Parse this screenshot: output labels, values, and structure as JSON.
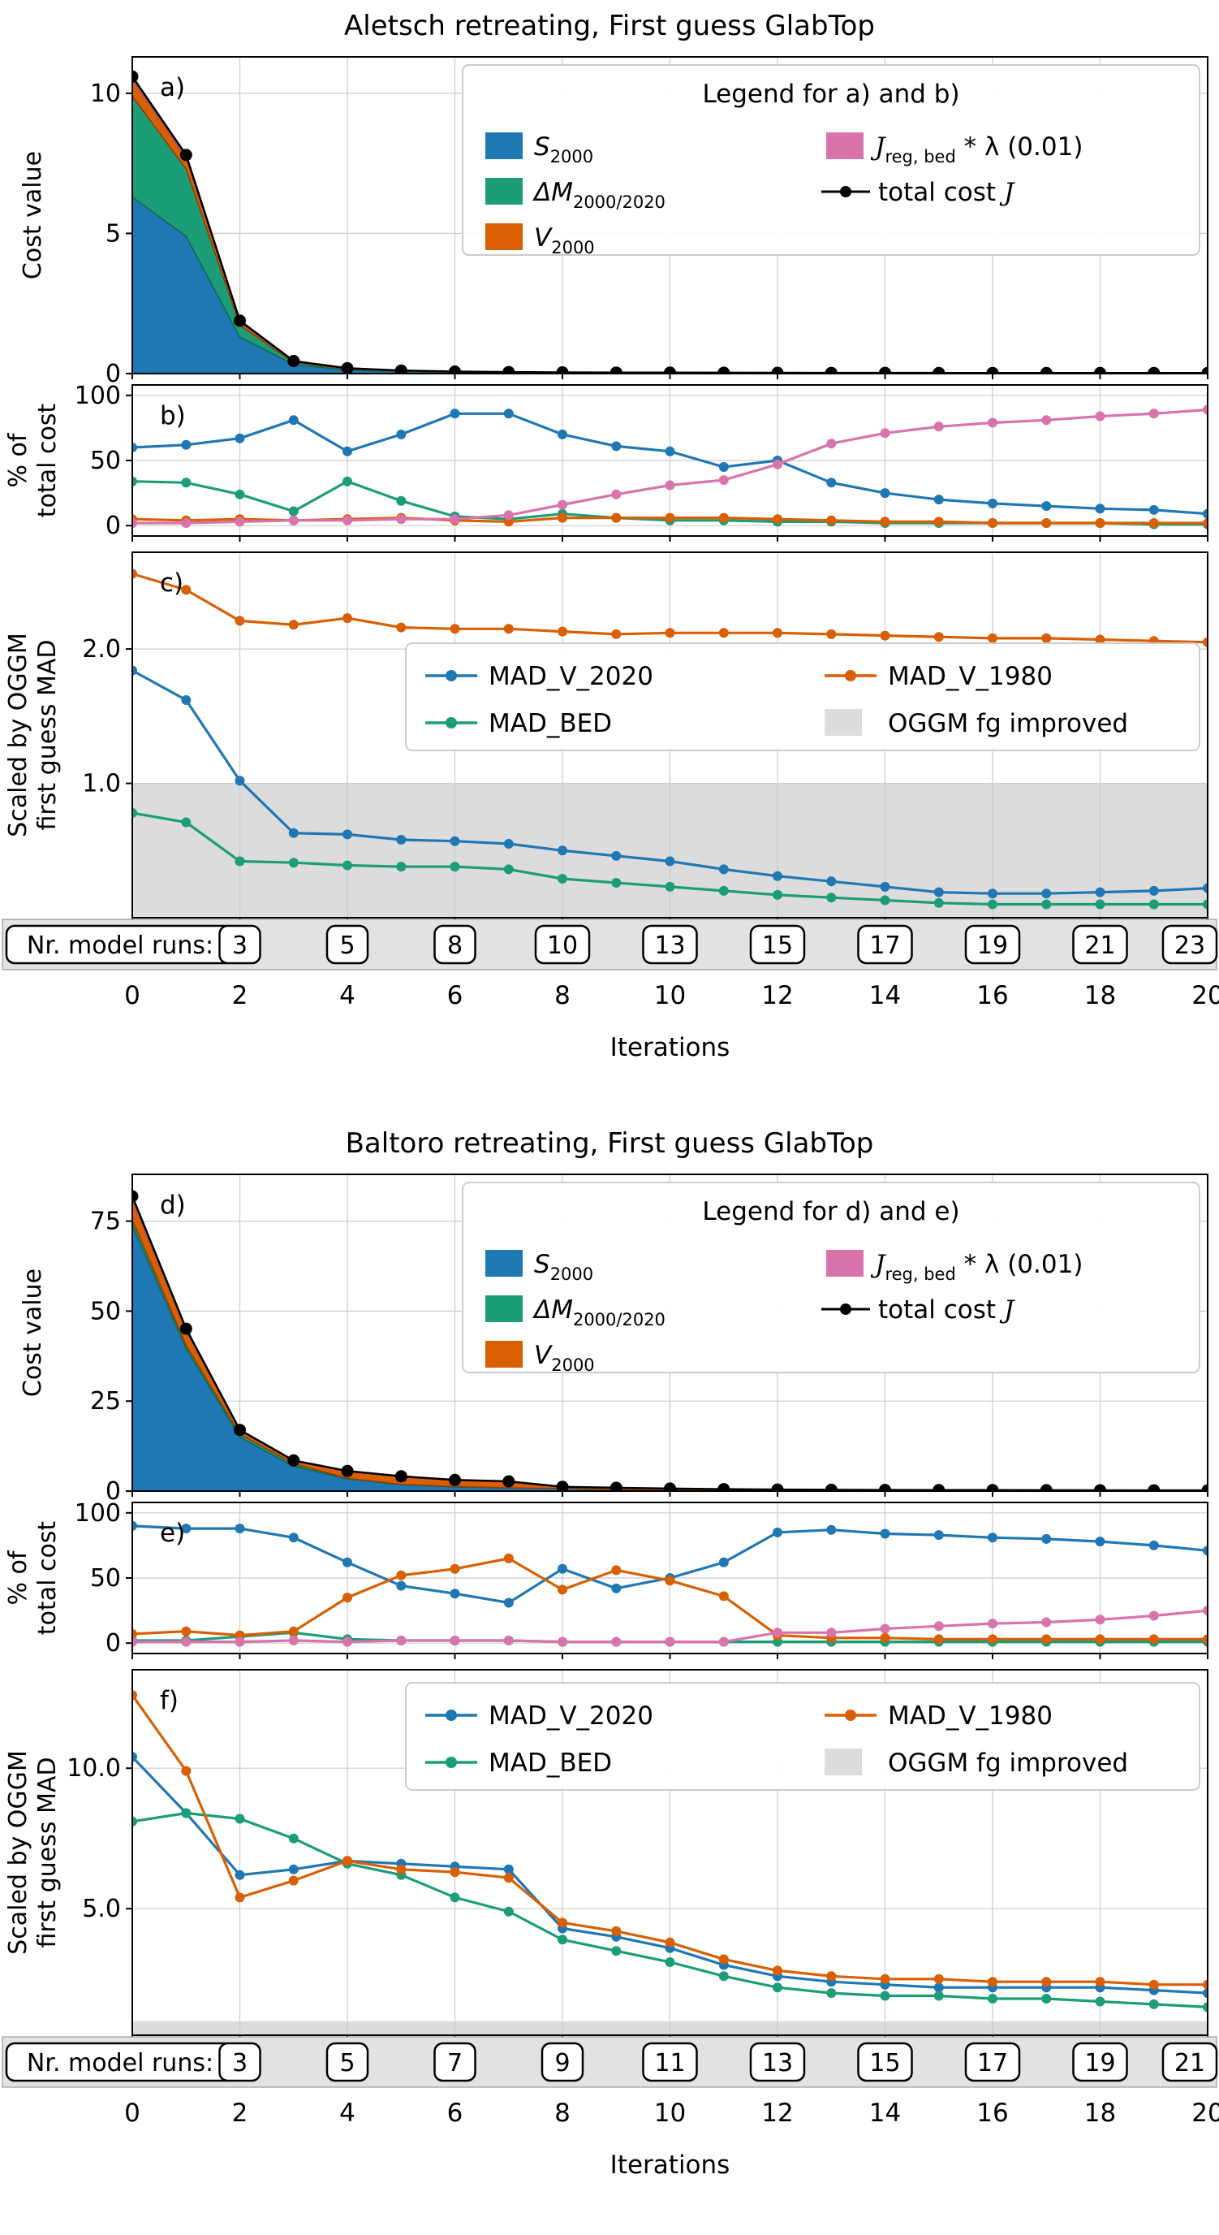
{
  "colors": {
    "grid": "#cccccc",
    "shade": "#dcdcdc",
    "band": "#e2e2e2"
  },
  "x_axis": {
    "ticks": [
      0,
      2,
      4,
      6,
      8,
      10,
      12,
      14,
      16,
      18,
      20
    ],
    "labels": [
      "0",
      "2",
      "4",
      "6",
      "8",
      "10",
      "12",
      "14",
      "16",
      "18",
      "20"
    ],
    "label": "Iterations"
  },
  "figures": [
    {
      "title": "Aletsch retreating, First guess GlabTop",
      "legend_cost_title": "Legend for a) and b)",
      "model_runs": {
        "label": "Nr. model runs:",
        "x": [
          2,
          4,
          6,
          8,
          10,
          12,
          14,
          16,
          18,
          20
        ],
        "values": [
          3,
          5,
          8,
          10,
          13,
          15,
          17,
          19,
          21,
          23
        ]
      }
    },
    {
      "title": "Baltoro retreating, First guess GlabTop",
      "legend_cost_title": "Legend for d) and e)",
      "model_runs": {
        "label": "Nr. model runs:",
        "x": [
          2,
          4,
          6,
          8,
          10,
          12,
          14,
          16,
          18,
          20
        ],
        "values": [
          3,
          5,
          7,
          9,
          11,
          13,
          15,
          17,
          19,
          21
        ]
      }
    }
  ],
  "legends": {
    "cost_entries": [
      {
        "id": "s2000",
        "color": "#1f77b4",
        "parts": [
          {
            "t": "S",
            "s": "it"
          },
          {
            "t": "2000",
            "s": "sub"
          }
        ]
      },
      {
        "id": "dm",
        "color": "#1b9e77",
        "parts": [
          {
            "t": "ΔM",
            "s": "it"
          },
          {
            "t": "2000/2020",
            "s": "sub"
          }
        ]
      },
      {
        "id": "v2000",
        "color": "#d95f02",
        "parts": [
          {
            "t": "V",
            "s": "it"
          },
          {
            "t": "2000",
            "s": "sub"
          }
        ]
      },
      {
        "id": "jreg",
        "color": "#d873ac",
        "parts": [
          {
            "t": "J",
            "s": "script"
          },
          {
            "t": "reg, bed",
            "s": "sub"
          },
          {
            "t": " * λ (0.01)",
            "s": "n"
          }
        ]
      },
      {
        "id": "total",
        "color": "#000000",
        "sample": "line",
        "parts": [
          {
            "t": "total cost ",
            "s": "n"
          },
          {
            "t": "J",
            "s": "script"
          }
        ]
      }
    ],
    "mad_entries": [
      {
        "label": "MAD_V_2020",
        "color": "#1f77b4",
        "sample": "line"
      },
      {
        "label": "MAD_BED",
        "color": "#1b9e77",
        "sample": "line"
      },
      {
        "label": "MAD_V_1980",
        "color": "#d95f02",
        "sample": "line"
      },
      {
        "label": "OGGM fg improved",
        "color": "#dcdcdc",
        "sample": "patch"
      }
    ]
  },
  "chart_data": [
    {
      "figure": 0,
      "panel": "a",
      "type": "area",
      "panel_label": "a)",
      "ylabel": [
        "Cost value"
      ],
      "xlim": [
        0,
        20
      ],
      "ylim": [
        0,
        11.3
      ],
      "yticks": [
        0,
        5,
        10
      ],
      "yticklabels": [
        "0",
        "5",
        "10"
      ],
      "x": [
        0,
        1,
        2,
        3,
        4,
        5,
        6,
        7,
        8,
        9,
        10,
        11,
        12,
        13,
        14,
        15,
        16,
        17,
        18,
        19,
        20
      ],
      "stack_series": [
        {
          "id": "s2000",
          "name": "S_2000",
          "color": "#1f77b4",
          "edge": "#155a8a",
          "values": [
            6.3,
            4.9,
            1.3,
            0.33,
            0.12,
            0.07,
            0.05,
            0.04,
            0.03,
            0.025,
            0.02,
            0.018,
            0.015,
            0.012,
            0.01,
            0.009,
            0.008,
            0.007,
            0.006,
            0.005,
            0.005
          ]
        },
        {
          "id": "dm",
          "name": "ΔM_2000/2020",
          "color": "#1b9e77",
          "edge": "#12684f",
          "values": [
            3.6,
            2.4,
            0.42,
            0.07,
            0.04,
            0.02,
            0.008,
            0.005,
            0.004,
            0.004,
            0.003,
            0.003,
            0.002,
            0.002,
            0.002,
            0.002,
            0.001,
            0.001,
            0.001,
            0.001,
            0.001
          ]
        },
        {
          "id": "v2000",
          "name": "V_2000",
          "color": "#d95f02",
          "edge": "#8f3f02",
          "values": [
            0.6,
            0.42,
            0.11,
            0.03,
            0.02,
            0.012,
            0.008,
            0.004,
            0.003,
            0.003,
            0.003,
            0.002,
            0.002,
            0.002,
            0.001,
            0.001,
            0.001,
            0.001,
            0.001,
            0.001,
            0.001
          ]
        },
        {
          "id": "jreg",
          "name": "J_reg,bed * λ (0.01)",
          "color": "#d873ac",
          "edge": "#9c5580",
          "values": [
            0.1,
            0.08,
            0.06,
            0.02,
            0.01,
            0.008,
            0.005,
            0.005,
            0.006,
            0.007,
            0.008,
            0.009,
            0.01,
            0.011,
            0.012,
            0.012,
            0.012,
            0.012,
            0.012,
            0.012,
            0.012
          ]
        }
      ],
      "series": [
        {
          "id": "total",
          "name": "total cost J",
          "color": "#000000",
          "width": 2.5,
          "marker_r": 7.5,
          "values": [
            10.6,
            7.8,
            1.89,
            0.45,
            0.19,
            0.11,
            0.071,
            0.054,
            0.043,
            0.039,
            0.034,
            0.032,
            0.029,
            0.027,
            0.025,
            0.024,
            0.022,
            0.021,
            0.02,
            0.019,
            0.019
          ]
        }
      ]
    },
    {
      "figure": 0,
      "panel": "b",
      "type": "line",
      "panel_label": "b)",
      "ylabel": [
        "% of",
        "total cost"
      ],
      "xlim": [
        0,
        20
      ],
      "ylim": [
        -8,
        108
      ],
      "yticks": [
        0,
        50,
        100
      ],
      "yticklabels": [
        "0",
        "50",
        "100"
      ],
      "x": [
        0,
        1,
        2,
        3,
        4,
        5,
        6,
        7,
        8,
        9,
        10,
        11,
        12,
        13,
        14,
        15,
        16,
        17,
        18,
        19,
        20
      ],
      "series": [
        {
          "id": "s2000",
          "name": "S_2000",
          "color": "#1f77b4",
          "values": [
            60,
            62,
            67,
            81,
            57,
            70,
            86,
            86,
            70,
            61,
            57,
            45,
            50,
            33,
            25,
            20,
            17,
            15,
            13,
            12,
            9
          ]
        },
        {
          "id": "dm",
          "name": "ΔM_2000/2020",
          "color": "#1b9e77",
          "values": [
            34,
            33,
            24,
            11,
            34,
            19,
            7,
            5,
            9,
            6,
            4,
            4,
            3,
            3,
            2,
            2,
            2,
            2,
            2,
            1,
            1
          ]
        },
        {
          "id": "v2000",
          "name": "V_2000",
          "color": "#d95f02",
          "values": [
            5,
            4,
            5,
            4,
            5,
            6,
            4,
            3,
            6,
            6,
            6,
            6,
            5,
            4,
            3,
            3,
            2,
            2,
            2,
            2,
            2
          ]
        },
        {
          "id": "jreg",
          "name": "J_reg,bed * λ (0.01)",
          "color": "#d873ac",
          "values": [
            2,
            2,
            3,
            4,
            4,
            5,
            5,
            8,
            16,
            24,
            31,
            35,
            47,
            63,
            71,
            76,
            79,
            81,
            84,
            86,
            89
          ]
        }
      ]
    },
    {
      "figure": 0,
      "panel": "c",
      "type": "line",
      "panel_label": "c)",
      "ylabel": [
        "Scaled by OGGM",
        "first guess MAD"
      ],
      "xlim": [
        0,
        20
      ],
      "ylim": [
        0,
        2.72
      ],
      "yticks": [
        1.0,
        2.0
      ],
      "yticklabels": [
        "1.0",
        "2.0"
      ],
      "shade_below": 1.0,
      "x": [
        0,
        1,
        2,
        3,
        4,
        5,
        6,
        7,
        8,
        9,
        10,
        11,
        12,
        13,
        14,
        15,
        16,
        17,
        18,
        19,
        20
      ],
      "series": [
        {
          "id": "madv2020",
          "name": "MAD_V_2020",
          "color": "#1f77b4",
          "values": [
            1.84,
            1.62,
            1.02,
            0.63,
            0.62,
            0.58,
            0.57,
            0.55,
            0.5,
            0.46,
            0.42,
            0.36,
            0.31,
            0.27,
            0.23,
            0.19,
            0.18,
            0.18,
            0.19,
            0.2,
            0.22
          ]
        },
        {
          "id": "madbed",
          "name": "MAD_BED",
          "color": "#1b9e77",
          "values": [
            0.78,
            0.71,
            0.42,
            0.41,
            0.39,
            0.38,
            0.38,
            0.36,
            0.29,
            0.26,
            0.23,
            0.2,
            0.17,
            0.15,
            0.13,
            0.11,
            0.1,
            0.1,
            0.1,
            0.1,
            0.1
          ]
        },
        {
          "id": "madv1980",
          "name": "MAD_V_1980",
          "color": "#d95f02",
          "values": [
            2.56,
            2.44,
            2.21,
            2.18,
            2.23,
            2.16,
            2.15,
            2.15,
            2.13,
            2.11,
            2.12,
            2.12,
            2.12,
            2.11,
            2.1,
            2.09,
            2.08,
            2.08,
            2.07,
            2.06,
            2.05
          ]
        }
      ]
    },
    {
      "figure": 1,
      "panel": "d",
      "type": "area",
      "panel_label": "d)",
      "ylabel": [
        "Cost value"
      ],
      "xlim": [
        0,
        20
      ],
      "ylim": [
        0,
        88
      ],
      "yticks": [
        0,
        25,
        50,
        75
      ],
      "yticklabels": [
        "0",
        "25",
        "50",
        "75"
      ],
      "x": [
        0,
        1,
        2,
        3,
        4,
        5,
        6,
        7,
        8,
        9,
        10,
        11,
        12,
        13,
        14,
        15,
        16,
        17,
        18,
        19,
        20
      ],
      "stack_series": [
        {
          "id": "s2000",
          "name": "S_2000",
          "color": "#1f77b4",
          "edge": "#155a8a",
          "values": [
            73.8,
            39.6,
            15,
            6.9,
            3.4,
            1.8,
            1.2,
            0.85,
            0.69,
            0.39,
            0.35,
            0.34,
            0.36,
            0.31,
            0.26,
            0.23,
            0.21,
            0.19,
            0.17,
            0.16,
            0.14
          ]
        },
        {
          "id": "dm",
          "name": "ΔM_2000/2020",
          "color": "#1b9e77",
          "edge": "#12684f",
          "values": [
            1.6,
            0.9,
            0.85,
            0.68,
            0.17,
            0.08,
            0.06,
            0.05,
            0.012,
            0.009,
            0.007,
            0.006,
            0.004,
            0.004,
            0.003,
            0.003,
            0.003,
            0.002,
            0.002,
            0.002,
            0.002
          ]
        },
        {
          "id": "v2000",
          "name": "V_2000",
          "color": "#d95f02",
          "edge": "#8f3f02",
          "values": [
            5.7,
            4.1,
            1.0,
            0.77,
            1.93,
            2.13,
            1.82,
            1.76,
            0.49,
            0.51,
            0.34,
            0.2,
            0.025,
            0.015,
            0.012,
            0.009,
            0.008,
            0.007,
            0.007,
            0.006,
            0.006
          ]
        },
        {
          "id": "jreg",
          "name": "J_reg,bed * λ (0.01)",
          "color": "#d873ac",
          "edge": "#9c5580",
          "values": [
            0.8,
            0.45,
            0.17,
            0.17,
            0.06,
            0.08,
            0.064,
            0.054,
            0.012,
            0.009,
            0.007,
            0.006,
            0.034,
            0.029,
            0.034,
            0.036,
            0.039,
            0.038,
            0.04,
            0.044,
            0.05
          ]
        }
      ],
      "series": [
        {
          "id": "total",
          "name": "total cost J",
          "color": "#000000",
          "width": 2.5,
          "marker_r": 7.5,
          "values": [
            81.9,
            45.1,
            17,
            8.5,
            5.6,
            4.1,
            3.1,
            2.7,
            1.2,
            0.92,
            0.7,
            0.55,
            0.42,
            0.36,
            0.31,
            0.28,
            0.26,
            0.24,
            0.22,
            0.21,
            0.2
          ]
        }
      ]
    },
    {
      "figure": 1,
      "panel": "e",
      "type": "line",
      "panel_label": "e)",
      "ylabel": [
        "% of",
        "total cost"
      ],
      "xlim": [
        0,
        20
      ],
      "ylim": [
        -8,
        108
      ],
      "yticks": [
        0,
        50,
        100
      ],
      "yticklabels": [
        "0",
        "50",
        "100"
      ],
      "x": [
        0,
        1,
        2,
        3,
        4,
        5,
        6,
        7,
        8,
        9,
        10,
        11,
        12,
        13,
        14,
        15,
        16,
        17,
        18,
        19,
        20
      ],
      "series": [
        {
          "id": "s2000",
          "name": "S_2000",
          "color": "#1f77b4",
          "values": [
            90,
            88,
            88,
            81,
            62,
            44,
            38,
            31,
            57,
            42,
            50,
            62,
            85,
            87,
            84,
            83,
            81,
            80,
            78,
            75,
            71
          ]
        },
        {
          "id": "dm",
          "name": "ΔM_2000/2020",
          "color": "#1b9e77",
          "values": [
            2,
            2,
            5,
            8,
            3,
            2,
            2,
            2,
            1,
            1,
            1,
            1,
            1,
            1,
            1,
            1,
            1,
            1,
            1,
            1,
            1
          ]
        },
        {
          "id": "v2000",
          "name": "V_2000",
          "color": "#d95f02",
          "values": [
            7,
            9,
            6,
            9,
            35,
            52,
            57,
            65,
            41,
            56,
            48,
            36,
            6,
            4,
            4,
            3,
            3,
            3,
            3,
            3,
            3
          ]
        },
        {
          "id": "jreg",
          "name": "J_reg,bed * λ (0.01)",
          "color": "#d873ac",
          "values": [
            1,
            1,
            1,
            2,
            1,
            2,
            2,
            2,
            1,
            1,
            1,
            1,
            8,
            8,
            11,
            13,
            15,
            16,
            18,
            21,
            25
          ]
        }
      ]
    },
    {
      "figure": 1,
      "panel": "f",
      "type": "line",
      "panel_label": "f)",
      "ylabel": [
        "Scaled by OGGM",
        "first guess MAD"
      ],
      "xlim": [
        0,
        20
      ],
      "ylim": [
        0.5,
        13.5
      ],
      "yticks": [
        5.0,
        10.0
      ],
      "yticklabels": [
        "5.0",
        "10.0"
      ],
      "shade_below": 1.0,
      "x": [
        0,
        1,
        2,
        3,
        4,
        5,
        6,
        7,
        8,
        9,
        10,
        11,
        12,
        13,
        14,
        15,
        16,
        17,
        18,
        19,
        20
      ],
      "series": [
        {
          "id": "madv2020",
          "name": "MAD_V_2020",
          "color": "#1f77b4",
          "values": [
            10.4,
            8.4,
            6.2,
            6.4,
            6.7,
            6.6,
            6.5,
            6.4,
            4.3,
            4.0,
            3.6,
            3.0,
            2.6,
            2.4,
            2.3,
            2.2,
            2.2,
            2.2,
            2.2,
            2.1,
            2.0
          ]
        },
        {
          "id": "madbed",
          "name": "MAD_BED",
          "color": "#1b9e77",
          "values": [
            8.1,
            8.4,
            8.2,
            7.5,
            6.6,
            6.2,
            5.4,
            4.9,
            3.9,
            3.5,
            3.1,
            2.6,
            2.2,
            2.0,
            1.9,
            1.9,
            1.8,
            1.8,
            1.7,
            1.6,
            1.5
          ]
        },
        {
          "id": "madv1980",
          "name": "MAD_V_1980",
          "color": "#d95f02",
          "values": [
            12.6,
            9.9,
            5.4,
            6.0,
            6.7,
            6.4,
            6.3,
            6.1,
            4.5,
            4.2,
            3.8,
            3.2,
            2.8,
            2.6,
            2.5,
            2.5,
            2.4,
            2.4,
            2.4,
            2.3,
            2.3
          ]
        }
      ]
    }
  ]
}
